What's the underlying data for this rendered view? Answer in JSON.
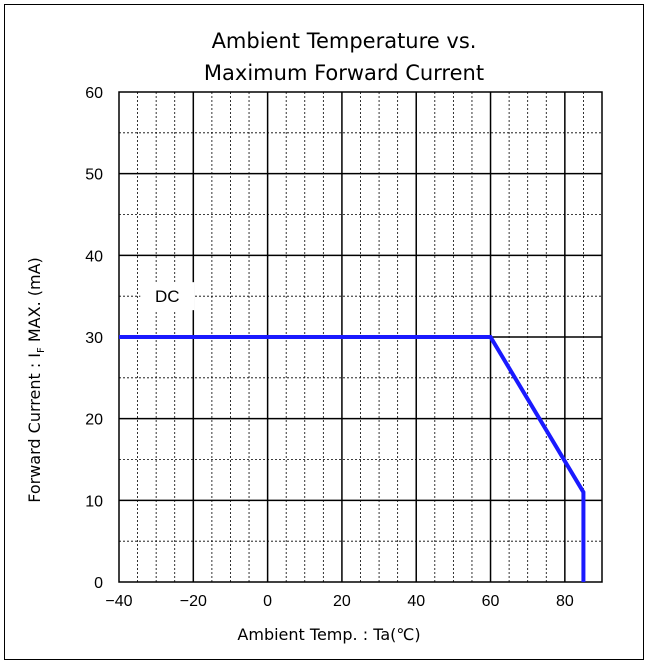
{
  "chart_data": {
    "type": "line",
    "title_lines": [
      "Ambient Temperature vs.",
      "Maximum Forward Current"
    ],
    "xlabel": "Ambient Temp. : Ta(℃)",
    "ylabel": {
      "main": "Forward Current : I",
      "sub": "F",
      "rest": " MAX. (mA)"
    },
    "xlim": [
      -40,
      90
    ],
    "ylim": [
      0,
      60
    ],
    "xticks": [
      -40,
      -20,
      0,
      20,
      40,
      60,
      80
    ],
    "xtick_labels": [
      "−40",
      "−20",
      "0",
      "20",
      "40",
      "60",
      "80"
    ],
    "yticks": [
      0,
      10,
      20,
      30,
      40,
      50,
      60
    ],
    "ytick_labels": [
      "0",
      "10",
      "20",
      "30",
      "40",
      "50",
      "60"
    ],
    "grid": true,
    "series": [
      {
        "name": "DC",
        "color": "#1a1aff",
        "x": [
          -40,
          60,
          85,
          85
        ],
        "y": [
          30,
          30,
          11,
          0
        ]
      }
    ],
    "annotations": [
      {
        "text": "DC",
        "x": -27,
        "y": 35
      }
    ]
  }
}
